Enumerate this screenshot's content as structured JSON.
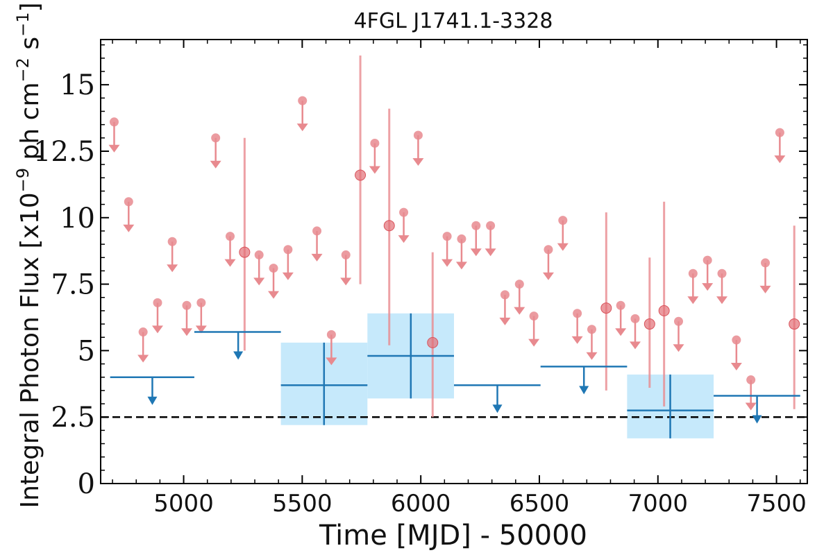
{
  "chart_data": {
    "type": "scatter",
    "title": "4FGL J1741.1-3328",
    "xlabel": "Time [MJD] - 50000",
    "ylabel": "Integral Photon Flux [x10",
    "ylabel_exp": "−9",
    "ylabel_mid": " ph cm",
    "ylabel_exp2": "−2",
    "ylabel_end": " s",
    "ylabel_exp3": "−1",
    "ylabel_close": "]",
    "xlim": [
      4650,
      7630
    ],
    "ylim": [
      0,
      16.7
    ],
    "xticks": [
      5000,
      5500,
      6000,
      6500,
      7000,
      7500
    ],
    "yticks": [
      0,
      2.5,
      5,
      7.5,
      10,
      12.5,
      15
    ],
    "ytick_labels": [
      "0",
      "2.5",
      "5",
      "7.5",
      "10",
      "12.5",
      "15"
    ],
    "reference_line": 2.5,
    "colors": {
      "monthly": "#e88a8f",
      "yearly": "#1f77b4",
      "band": "#c6e9fb",
      "reference": "#000000"
    },
    "monthly_upper_limits": [
      {
        "x": 4707,
        "y": 13.6
      },
      {
        "x": 4768,
        "y": 10.6
      },
      {
        "x": 4829,
        "y": 5.7
      },
      {
        "x": 4890,
        "y": 6.8
      },
      {
        "x": 4952,
        "y": 9.1
      },
      {
        "x": 5013,
        "y": 6.7
      },
      {
        "x": 5074,
        "y": 6.8
      },
      {
        "x": 5135,
        "y": 13.0
      },
      {
        "x": 5196,
        "y": 9.3
      },
      {
        "x": 5318,
        "y": 8.6
      },
      {
        "x": 5379,
        "y": 8.1
      },
      {
        "x": 5440,
        "y": 8.8
      },
      {
        "x": 5501,
        "y": 14.4
      },
      {
        "x": 5562,
        "y": 9.5
      },
      {
        "x": 5623,
        "y": 5.6
      },
      {
        "x": 5684,
        "y": 8.6
      },
      {
        "x": 5806,
        "y": 12.8
      },
      {
        "x": 5928,
        "y": 10.2
      },
      {
        "x": 5989,
        "y": 13.1
      },
      {
        "x": 6111,
        "y": 9.3
      },
      {
        "x": 6172,
        "y": 9.2
      },
      {
        "x": 6233,
        "y": 9.7
      },
      {
        "x": 6294,
        "y": 9.7
      },
      {
        "x": 6355,
        "y": 7.1
      },
      {
        "x": 6416,
        "y": 7.5
      },
      {
        "x": 6477,
        "y": 6.3
      },
      {
        "x": 6538,
        "y": 8.8
      },
      {
        "x": 6599,
        "y": 9.9
      },
      {
        "x": 6660,
        "y": 6.4
      },
      {
        "x": 6721,
        "y": 5.8
      },
      {
        "x": 6843,
        "y": 6.7
      },
      {
        "x": 6904,
        "y": 6.2
      },
      {
        "x": 7087,
        "y": 6.1
      },
      {
        "x": 7148,
        "y": 7.9
      },
      {
        "x": 7209,
        "y": 8.4
      },
      {
        "x": 7270,
        "y": 7.9
      },
      {
        "x": 7331,
        "y": 5.4
      },
      {
        "x": 7392,
        "y": 3.9
      },
      {
        "x": 7453,
        "y": 8.3
      },
      {
        "x": 7514,
        "y": 13.2
      }
    ],
    "monthly_detections": [
      {
        "x": 5257,
        "y": 8.7,
        "ylo": 5.0,
        "yhi": 13.0
      },
      {
        "x": 5745,
        "y": 11.6,
        "ylo": 7.5,
        "yhi": 16.1
      },
      {
        "x": 5867,
        "y": 9.7,
        "ylo": 5.2,
        "yhi": 14.1
      },
      {
        "x": 6050,
        "y": 5.3,
        "ylo": 2.5,
        "yhi": 8.7
      },
      {
        "x": 6782,
        "y": 6.6,
        "ylo": 3.5,
        "yhi": 10.2
      },
      {
        "x": 6965,
        "y": 6.0,
        "ylo": 3.6,
        "yhi": 8.5
      },
      {
        "x": 7026,
        "y": 6.5,
        "ylo": 2.9,
        "yhi": 10.6
      },
      {
        "x": 7575,
        "y": 6.0,
        "ylo": 2.8,
        "yhi": 9.7
      }
    ],
    "yearly_upper_limits": [
      {
        "x0": 4690,
        "x1": 5045,
        "y": 4.0,
        "xa": 4868
      },
      {
        "x0": 5045,
        "x1": 5410,
        "y": 5.7,
        "xa": 5230
      },
      {
        "x0": 6140,
        "x1": 6505,
        "y": 3.7,
        "xa": 6323
      },
      {
        "x0": 6505,
        "x1": 6870,
        "y": 4.4,
        "xa": 6688
      },
      {
        "x0": 7235,
        "x1": 7600,
        "y": 3.3,
        "xa": 7418
      }
    ],
    "yearly_detections": [
      {
        "x0": 5410,
        "x1": 5775,
        "x": 5592,
        "y": 3.7,
        "ylo": 2.2,
        "yhi": 5.3
      },
      {
        "x0": 5775,
        "x1": 6140,
        "x": 5958,
        "y": 4.8,
        "ylo": 3.2,
        "yhi": 6.4
      },
      {
        "x0": 6870,
        "x1": 7235,
        "x": 7052,
        "y": 2.75,
        "ylo": 1.7,
        "yhi": 4.1
      }
    ]
  }
}
